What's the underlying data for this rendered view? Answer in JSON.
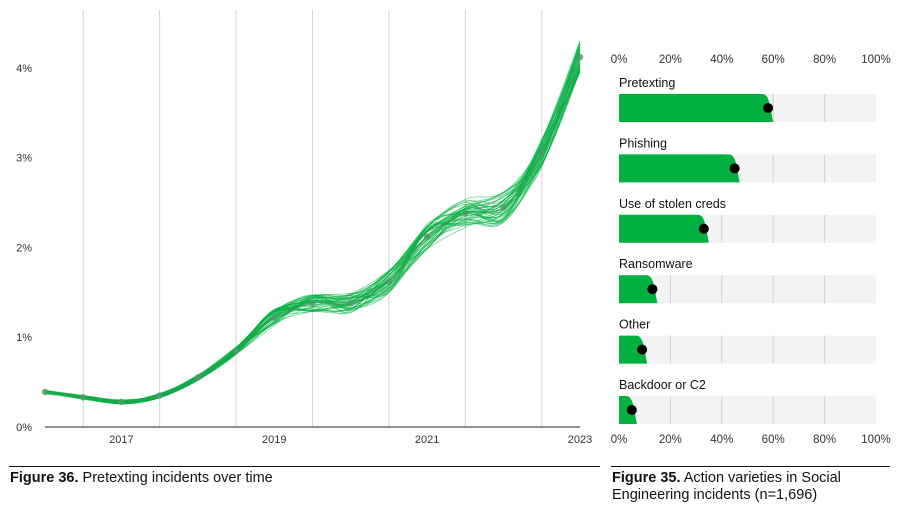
{
  "colors": {
    "accent": "#00b140",
    "track": "#f3f3f3",
    "grid": "#d4d4d4",
    "marker": "#000000",
    "text": "#111111"
  },
  "line_chart": {
    "caption_bold": "Figure 36.",
    "caption_text": " Pretexting incidents over time"
  },
  "bar_chart": {
    "caption_bold": "Figure 35.",
    "caption_text": " Action varieties in Social Engineering incidents (n=1,696)"
  },
  "chart_data": [
    {
      "type": "line",
      "title": "",
      "xlabel": "",
      "ylabel": "",
      "x_ticks": [
        "2017",
        "2019",
        "2021",
        "2023"
      ],
      "y_ticks": [
        "0%",
        "1%",
        "2%",
        "3%",
        "4%"
      ],
      "xlim": [
        2016,
        2023
      ],
      "ylim": [
        0,
        4.4
      ],
      "grid": "vertical",
      "series": [
        {
          "x": [
            2016.0,
            2016.5,
            2017.0,
            2017.5,
            2018.0,
            2018.5,
            2019.0,
            2019.5,
            2020.0,
            2020.5,
            2021.0,
            2021.5,
            2022.0,
            2022.5,
            2023.0
          ],
          "values": [
            0.39,
            0.33,
            0.28,
            0.35,
            0.55,
            0.85,
            1.22,
            1.38,
            1.38,
            1.62,
            2.12,
            2.38,
            2.45,
            3.05,
            4.12
          ]
        }
      ],
      "uncertainty": "many overlapping green simulated trend lines"
    },
    {
      "type": "bar",
      "title": "",
      "xlabel": "",
      "x_ticks": [
        "0%",
        "20%",
        "40%",
        "60%",
        "80%",
        "100%"
      ],
      "xlim": [
        0,
        100
      ],
      "categories": [
        "Pretexting",
        "Phishing",
        "Use of stolen creds",
        "Ransomware",
        "Other",
        "Backdoor or C2"
      ],
      "values": [
        58,
        45,
        33,
        13,
        9,
        5
      ],
      "bar_extent": [
        60,
        47,
        35,
        15,
        11,
        7
      ]
    }
  ]
}
